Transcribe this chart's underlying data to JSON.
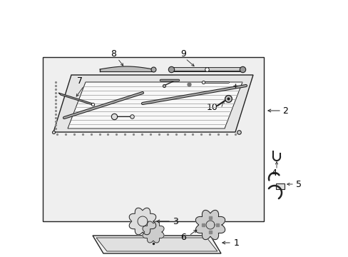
{
  "bg_color": "#ffffff",
  "line_color": "#222222",
  "gray_fill": "#e8e8e8",
  "dark_gray": "#555555",
  "mid_gray": "#888888",
  "light_fill": "#f2f2f2",
  "box_fill": "#efefef"
}
